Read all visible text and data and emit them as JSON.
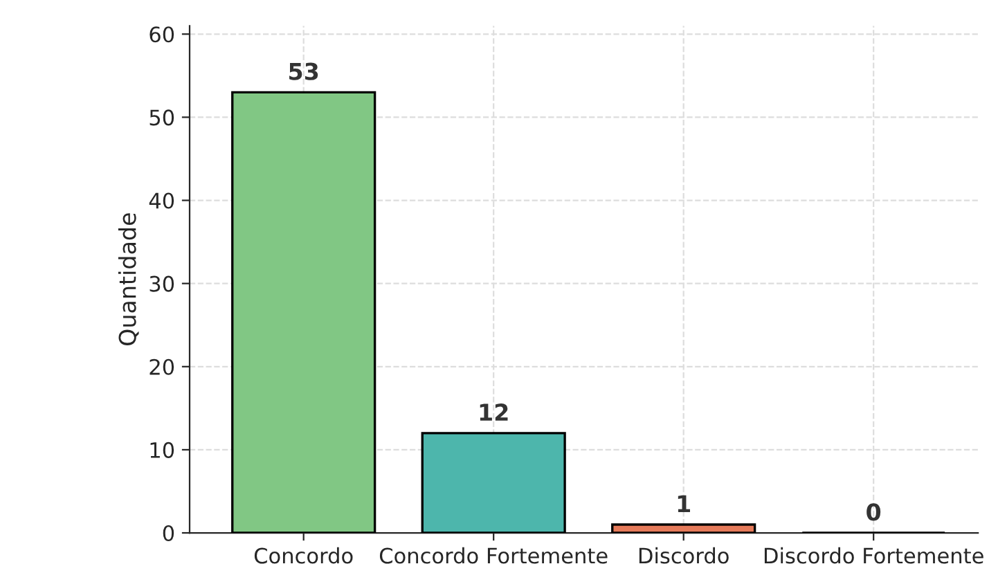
{
  "chart_data": {
    "type": "bar",
    "ylabel": "Quantidade",
    "categories": [
      "Concordo",
      "Concordo Fortemente",
      "Discordo",
      "Discordo Fortemente"
    ],
    "values": [
      53,
      12,
      1,
      0
    ],
    "colors": [
      "#81c784",
      "#4db6ac",
      "#e57a5a",
      "#000000"
    ],
    "ylim": [
      0,
      61
    ],
    "yticks": [
      0,
      10,
      20,
      30,
      40,
      50,
      60
    ],
    "grid": true,
    "data_labels": true
  }
}
